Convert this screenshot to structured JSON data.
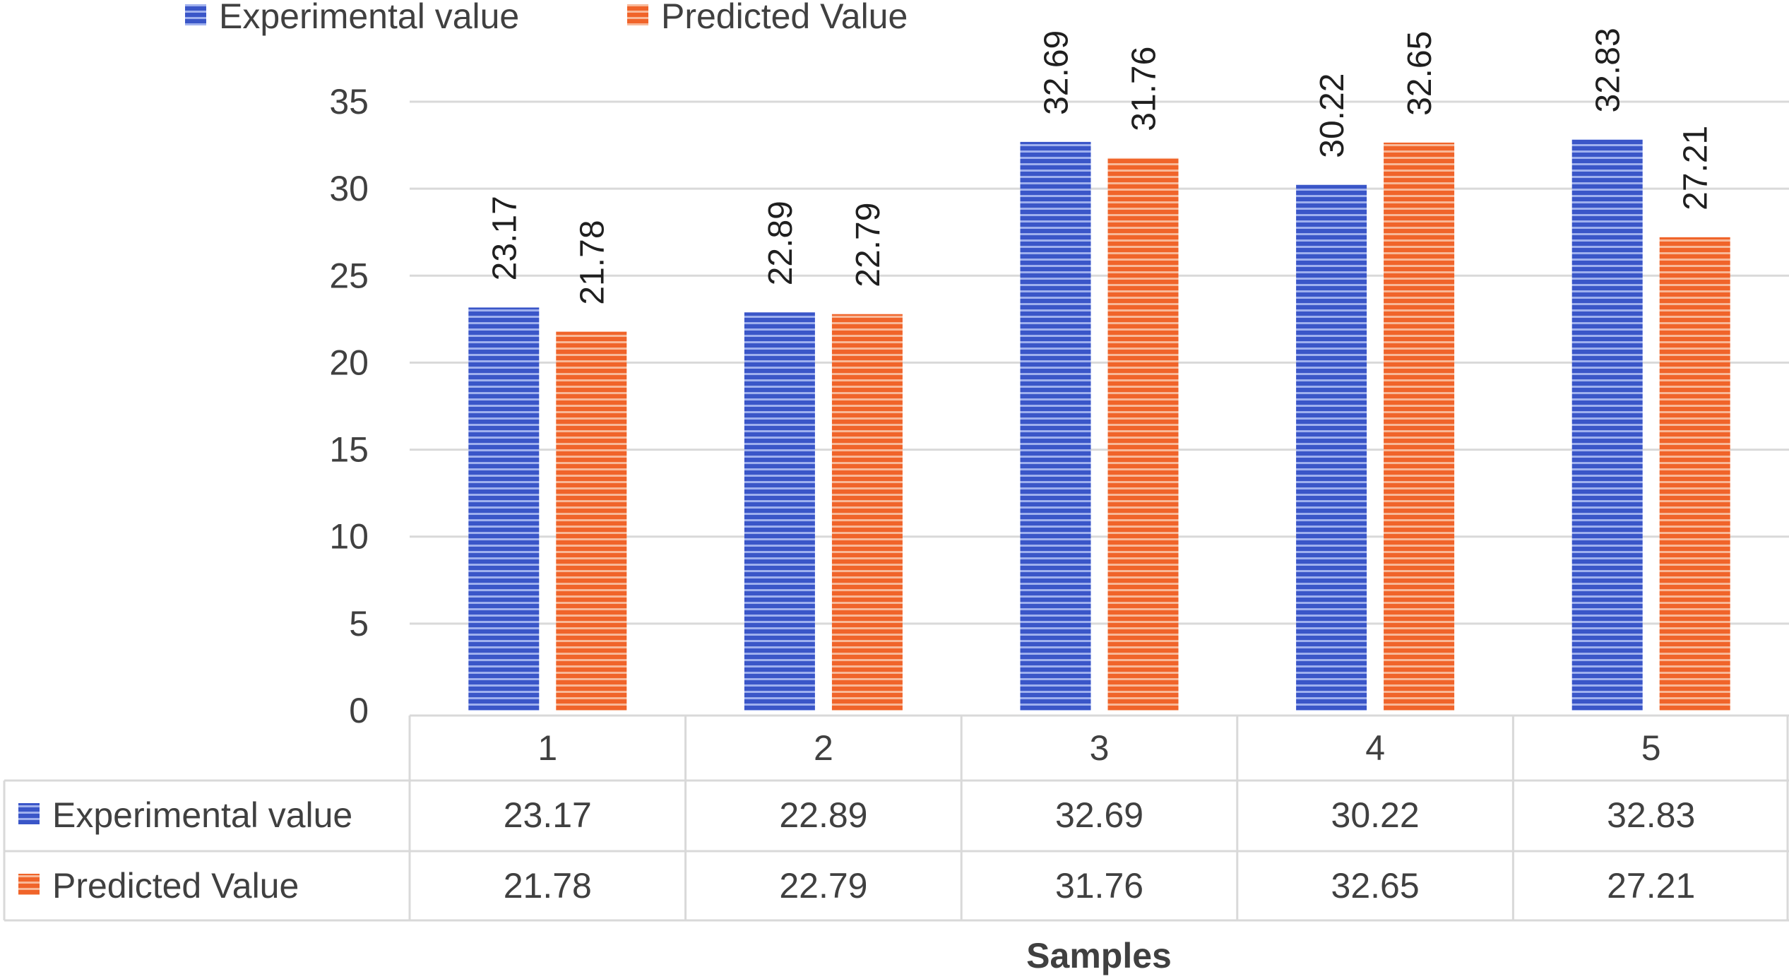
{
  "colors": {
    "experimental": "#3a56c8",
    "experimental_stripe": "#9fb0ee",
    "predicted": "#f0642a",
    "predicted_stripe": "#f8b898",
    "grid": "#d9d9d9",
    "text": "#404040"
  },
  "chart_data": {
    "type": "bar",
    "xlabel": "Samples",
    "ylabel": "",
    "ylim": [
      0,
      35
    ],
    "yticks": [
      0,
      5,
      10,
      15,
      20,
      25,
      30,
      35
    ],
    "grid": true,
    "legend_position": "top",
    "categories": [
      "1",
      "2",
      "3",
      "4",
      "5"
    ],
    "series": [
      {
        "name": "Experimental value",
        "values": [
          23.17,
          22.89,
          32.69,
          30.22,
          32.83
        ],
        "labels": [
          "23.17",
          "22.89",
          "32.69",
          "30.22",
          "32.83"
        ]
      },
      {
        "name": "Predicted Value",
        "values": [
          21.78,
          22.79,
          31.76,
          32.65,
          27.21
        ],
        "labels": [
          "21.78",
          "22.79",
          "31.76",
          "32.65",
          "27.21"
        ]
      }
    ],
    "data_table": true
  }
}
